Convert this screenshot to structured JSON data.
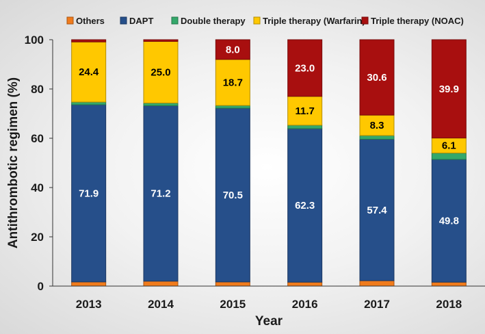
{
  "chart_data": {
    "type": "bar",
    "stacked": true,
    "title": "",
    "xlabel": "Year",
    "ylabel": "Antithrombotic regimen (%)",
    "ylim": [
      0,
      100
    ],
    "yticks": [
      0,
      20,
      40,
      60,
      80,
      100
    ],
    "grid": false,
    "legend_position": "top",
    "categories": [
      "2013",
      "2014",
      "2015",
      "2016",
      "2017",
      "2018"
    ],
    "series": [
      {
        "name": "Others",
        "color": "#f07b1c",
        "values": [
          1.7,
          2.0,
          1.7,
          1.6,
          2.2,
          1.6
        ],
        "labels": [
          "",
          "",
          "",
          "",
          "",
          ""
        ],
        "label_color": "#ffffff"
      },
      {
        "name": "DAPT",
        "color": "#264f8a",
        "values": [
          71.9,
          71.2,
          70.5,
          62.3,
          57.4,
          49.8
        ],
        "labels": [
          "71.9",
          "71.2",
          "70.5",
          "62.3",
          "57.4",
          "49.8"
        ],
        "label_color": "#ffffff"
      },
      {
        "name": "Double therapy",
        "color": "#34a86b",
        "values": [
          1.1,
          1.1,
          1.1,
          1.4,
          1.5,
          2.6
        ],
        "labels": [
          "",
          "",
          "",
          "",
          "",
          ""
        ],
        "label_color": "#ffffff"
      },
      {
        "name": "Triple therapy (Warfarin)",
        "color": "#ffc800",
        "values": [
          24.4,
          25.0,
          18.7,
          11.7,
          8.3,
          6.1
        ],
        "labels": [
          "24.4",
          "25.0",
          "18.7",
          "11.7",
          "8.3",
          "6.1"
        ],
        "label_color": "#000000"
      },
      {
        "name": "Triple therapy (NOAC)",
        "color": "#a80f0f",
        "values": [
          0.9,
          0.7,
          8.0,
          23.0,
          30.6,
          39.9
        ],
        "labels": [
          "",
          "",
          "8.0",
          "23.0",
          "30.6",
          "39.9"
        ],
        "label_color": "#ffffff"
      }
    ]
  }
}
